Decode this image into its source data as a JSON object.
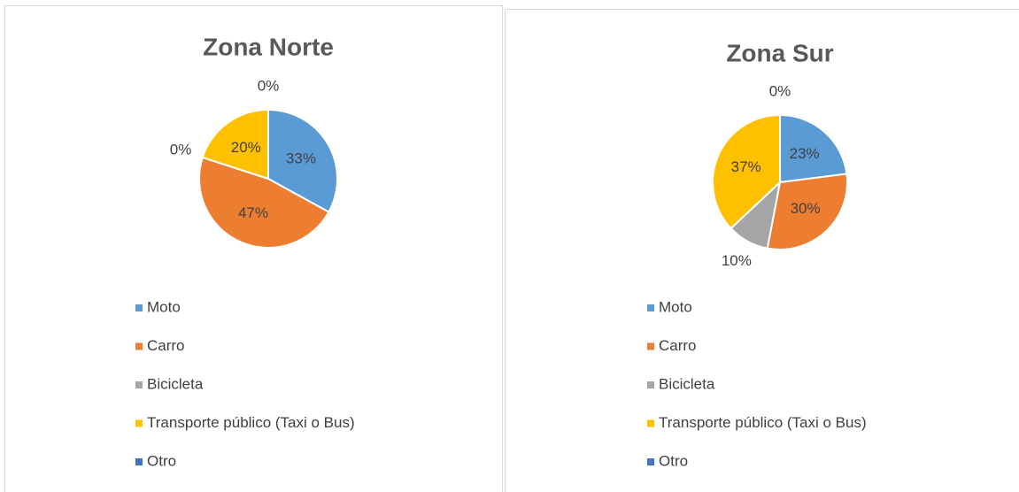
{
  "chart_data": [
    {
      "type": "pie",
      "title": "Zona Norte",
      "categories": [
        "Moto",
        "Carro",
        "Bicicleta",
        "Transporte público (Taxi o Bus)",
        "Otro"
      ],
      "values": [
        33,
        47,
        0,
        20,
        0
      ],
      "value_labels": [
        "33%",
        "47%",
        "0%",
        "20%",
        "0%"
      ],
      "colors": [
        "#5b9bd5",
        "#ed7d31",
        "#a5a5a5",
        "#ffc000",
        "#4472c4"
      ],
      "legend": "bottom"
    },
    {
      "type": "pie",
      "title": "Zona Sur",
      "categories": [
        "Moto",
        "Carro",
        "Bicicleta",
        "Transporte público (Taxi o Bus)",
        "Otro"
      ],
      "values": [
        23,
        30,
        10,
        37,
        0
      ],
      "value_labels": [
        "23%",
        "30%",
        "10%",
        "37%",
        "0%"
      ],
      "colors": [
        "#5b9bd5",
        "#ed7d31",
        "#a5a5a5",
        "#ffc000",
        "#4472c4"
      ],
      "legend": "bottom"
    }
  ]
}
